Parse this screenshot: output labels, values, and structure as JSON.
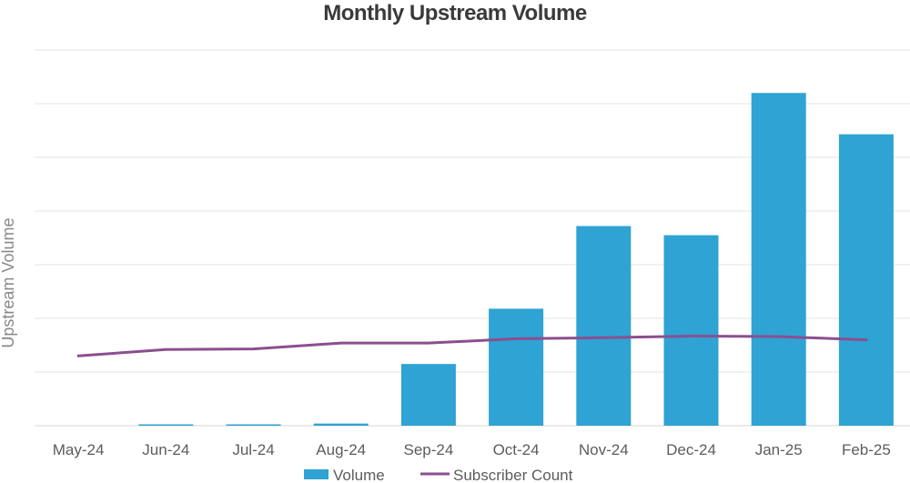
{
  "chart_data": {
    "type": "bar",
    "title": "Monthly Upstream Volume",
    "xlabel": "",
    "ylabel": "Upstream Volume",
    "categories": [
      "May-24",
      "Jun-24",
      "Jul-24",
      "Aug-24",
      "Sep-24",
      "Oct-24",
      "Nov-24",
      "Dec-24",
      "Jan-25",
      "Feb-25"
    ],
    "ylim": [
      0,
      7
    ],
    "gridlines": 7,
    "grid": true,
    "legend_position": "bottom",
    "series": [
      {
        "name": "Volume",
        "type": "bar",
        "color": "#2fa3d3",
        "values": [
          0,
          0.02,
          0.02,
          0.04,
          1.15,
          2.18,
          3.72,
          3.55,
          6.2,
          5.43
        ]
      },
      {
        "name": "Subscriber Count",
        "type": "line",
        "color": "#8b4f8f",
        "values": [
          1.3,
          1.42,
          1.43,
          1.54,
          1.54,
          1.62,
          1.64,
          1.67,
          1.66,
          1.6
        ]
      }
    ]
  }
}
